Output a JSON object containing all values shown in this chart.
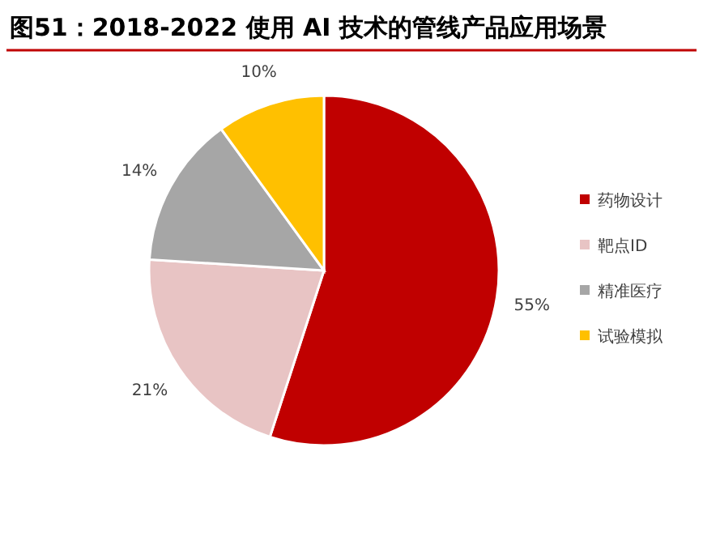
{
  "chart_data": {
    "type": "pie",
    "title": "图51：2018-2022 使用 AI 技术的管线产品应用场景",
    "categories": [
      "药物设计",
      "靶点ID",
      "精准医疗",
      "试验模拟"
    ],
    "values": [
      55,
      21,
      14,
      10
    ],
    "colors": [
      "#c00000",
      "#e8c4c4",
      "#a6a6a6",
      "#ffc000"
    ],
    "value_labels": [
      "55%",
      "21%",
      "14%",
      "10%"
    ],
    "legend": "right"
  }
}
